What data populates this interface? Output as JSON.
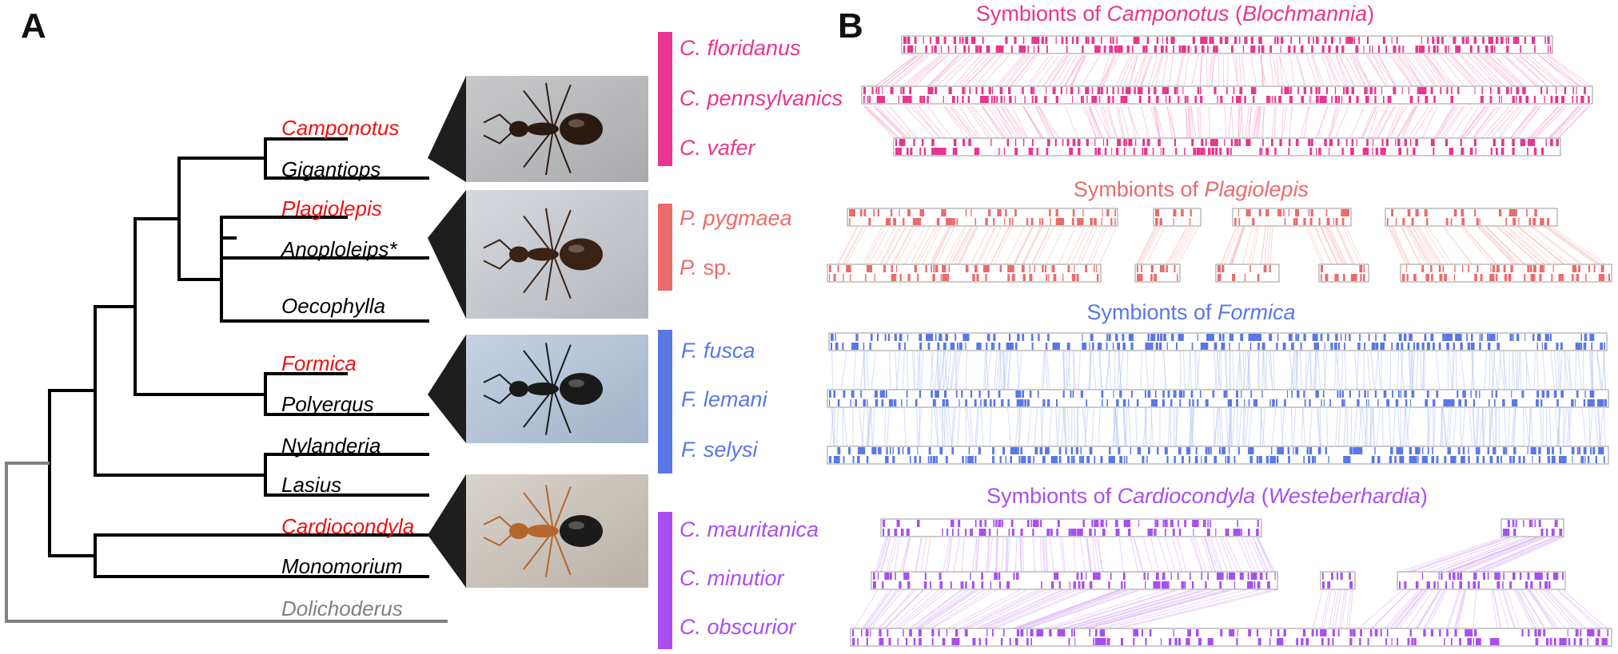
{
  "panels": {
    "a_label": "A",
    "b_label": "B"
  },
  "colors": {
    "camponotus": "#e8358f",
    "plagiolepis": "#ec6b6b",
    "formica": "#5a77e6",
    "cardiocondyla": "#a94ff0",
    "highlight_taxon": "#ee1111",
    "outgroup": "#808080",
    "branch": "#000000"
  },
  "tree": {
    "taxa": [
      {
        "name": "Camponotus",
        "highlight": true
      },
      {
        "name": "Gigantiops",
        "highlight": false
      },
      {
        "name": "Plagiolepis",
        "highlight": true
      },
      {
        "name": "Anoploleips*",
        "highlight": false
      },
      {
        "name": "Oecophylla",
        "highlight": false
      },
      {
        "name": "Formica",
        "highlight": true
      },
      {
        "name": "Polyergus",
        "highlight": false
      },
      {
        "name": "Nylanderia",
        "highlight": false
      },
      {
        "name": "Lasius",
        "highlight": false
      },
      {
        "name": "Cardiocondyla",
        "highlight": true
      },
      {
        "name": "Monomorium",
        "highlight": false
      },
      {
        "name": "Dolichoderus",
        "highlight": false,
        "outgroup": true
      }
    ]
  },
  "photos": [
    {
      "icon": "ant-photo-camponotus",
      "body_color": "#2a1a12"
    },
    {
      "icon": "ant-photo-plagiolepis",
      "body_color": "#3a2214"
    },
    {
      "icon": "ant-photo-formica",
      "body_color": "#1a1a1a"
    },
    {
      "icon": "ant-photo-cardiocondyla",
      "body_color": "#b4662d"
    }
  ],
  "groups": [
    {
      "key": "camponotus",
      "title_prefix": "Symbionts of ",
      "title_genus": "Camponotus",
      "title_open": " (",
      "title_symbiont": "Blochmannia",
      "title_close": ")",
      "species": [
        {
          "abbr": "C.",
          "epithet": "floridanus",
          "italic": true
        },
        {
          "abbr": "C.",
          "epithet": "pennsylvanics",
          "italic": true
        },
        {
          "abbr": "C.",
          "epithet": "vafer",
          "italic": true
        }
      ]
    },
    {
      "key": "plagiolepis",
      "title_prefix": "Symbionts of ",
      "title_genus": "Plagiolepis",
      "title_open": "",
      "title_symbiont": "",
      "title_close": "",
      "species": [
        {
          "abbr": "P.",
          "epithet": "pygmaea",
          "italic": true
        },
        {
          "abbr": "P.",
          "epithet": "sp.",
          "italic": false
        }
      ]
    },
    {
      "key": "formica",
      "title_prefix": "Symbionts of ",
      "title_genus": "Formica",
      "title_open": "",
      "title_symbiont": "",
      "title_close": "",
      "species": [
        {
          "abbr": "F.",
          "epithet": "fusca",
          "italic": true
        },
        {
          "abbr": "F.",
          "epithet": "lemani",
          "italic": true
        },
        {
          "abbr": "F.",
          "epithet": "selysi",
          "italic": true
        }
      ]
    },
    {
      "key": "cardiocondyla",
      "title_prefix": "Symbionts of ",
      "title_genus": "Cardiocondyla",
      "title_open": " (",
      "title_symbiont": "Westeberhardia",
      "title_close": ")",
      "species": [
        {
          "abbr": "C.",
          "epithet": "mauritanica",
          "italic": true
        },
        {
          "abbr": "C.",
          "epithet": "minutior",
          "italic": true
        },
        {
          "abbr": "C.",
          "epithet": "obscurior",
          "italic": true
        }
      ]
    }
  ]
}
